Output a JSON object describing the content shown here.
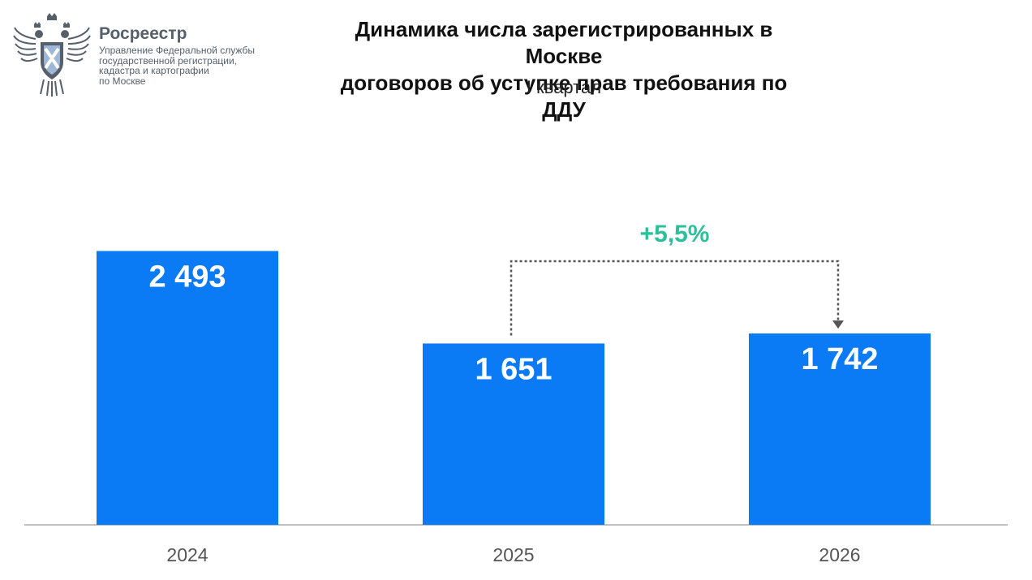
{
  "logo": {
    "name": "Росреестр",
    "org_lines": [
      "Управление Федеральной службы",
      "государственной регистрации,",
      "кадастра и картографии",
      "по Москве"
    ]
  },
  "colors": {
    "bar": "#0a7bf5",
    "accent": "#2bbf9a",
    "axis": "#bfbfbf",
    "arrow": "#555555",
    "logo": "#55606b"
  },
  "chart_data": {
    "type": "bar",
    "title_lines": [
      "Динамика числа зарегистрированных в Москве",
      "договоров об уступке прав требования по ДДУ"
    ],
    "subtitle": "I квартал",
    "categories": [
      "2024",
      "2025",
      "2026"
    ],
    "values": [
      2493,
      1651,
      1742
    ],
    "value_labels": [
      "2 493",
      "1 651",
      "1 742"
    ],
    "annotation": {
      "from": "2025",
      "to": "2026",
      "label": "+5,5%"
    },
    "ylim": [
      0,
      3050
    ],
    "grid": false,
    "legend": false
  }
}
